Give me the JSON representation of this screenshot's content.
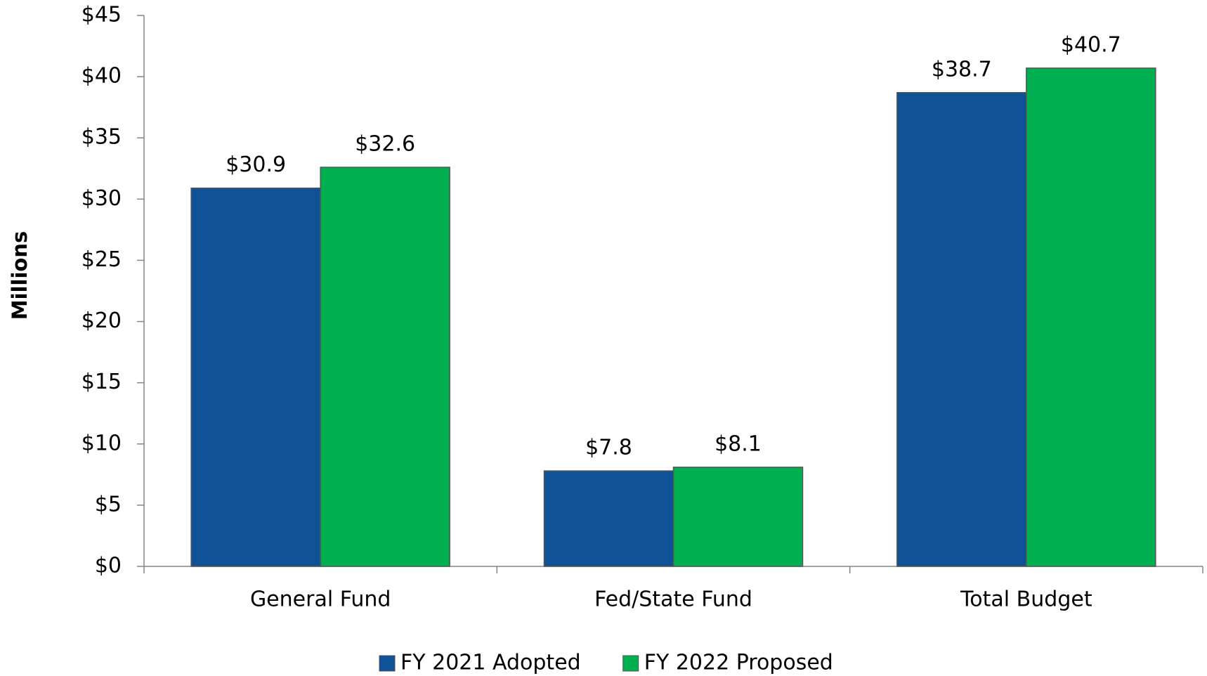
{
  "chart_data": {
    "type": "bar",
    "y_label": "Millions",
    "categories": [
      "General Fund",
      "Fed/State Fund",
      "Total Budget"
    ],
    "series": [
      {
        "name": "FY 2021 Adopted",
        "color": "#0f5196",
        "values": [
          30.9,
          7.8,
          38.7
        ],
        "value_labels": [
          "$30.9",
          "$7.8",
          "$38.7"
        ]
      },
      {
        "name": "FY 2022 Proposed",
        "color": "#00b050",
        "values": [
          32.6,
          8.1,
          40.7
        ],
        "value_labels": [
          "$32.6",
          "$8.1",
          "$40.7"
        ]
      }
    ],
    "ylim": [
      0,
      45
    ],
    "yticks": [
      {
        "value": 0,
        "label": "$0"
      },
      {
        "value": 5,
        "label": "$5"
      },
      {
        "value": 10,
        "label": "$10"
      },
      {
        "value": 15,
        "label": "$15"
      },
      {
        "value": 20,
        "label": "$20"
      },
      {
        "value": 25,
        "label": "$25"
      },
      {
        "value": 30,
        "label": "$30"
      },
      {
        "value": 35,
        "label": "$35"
      },
      {
        "value": 40,
        "label": "$40"
      },
      {
        "value": 45,
        "label": "$45"
      }
    ],
    "legend": "bottom"
  }
}
